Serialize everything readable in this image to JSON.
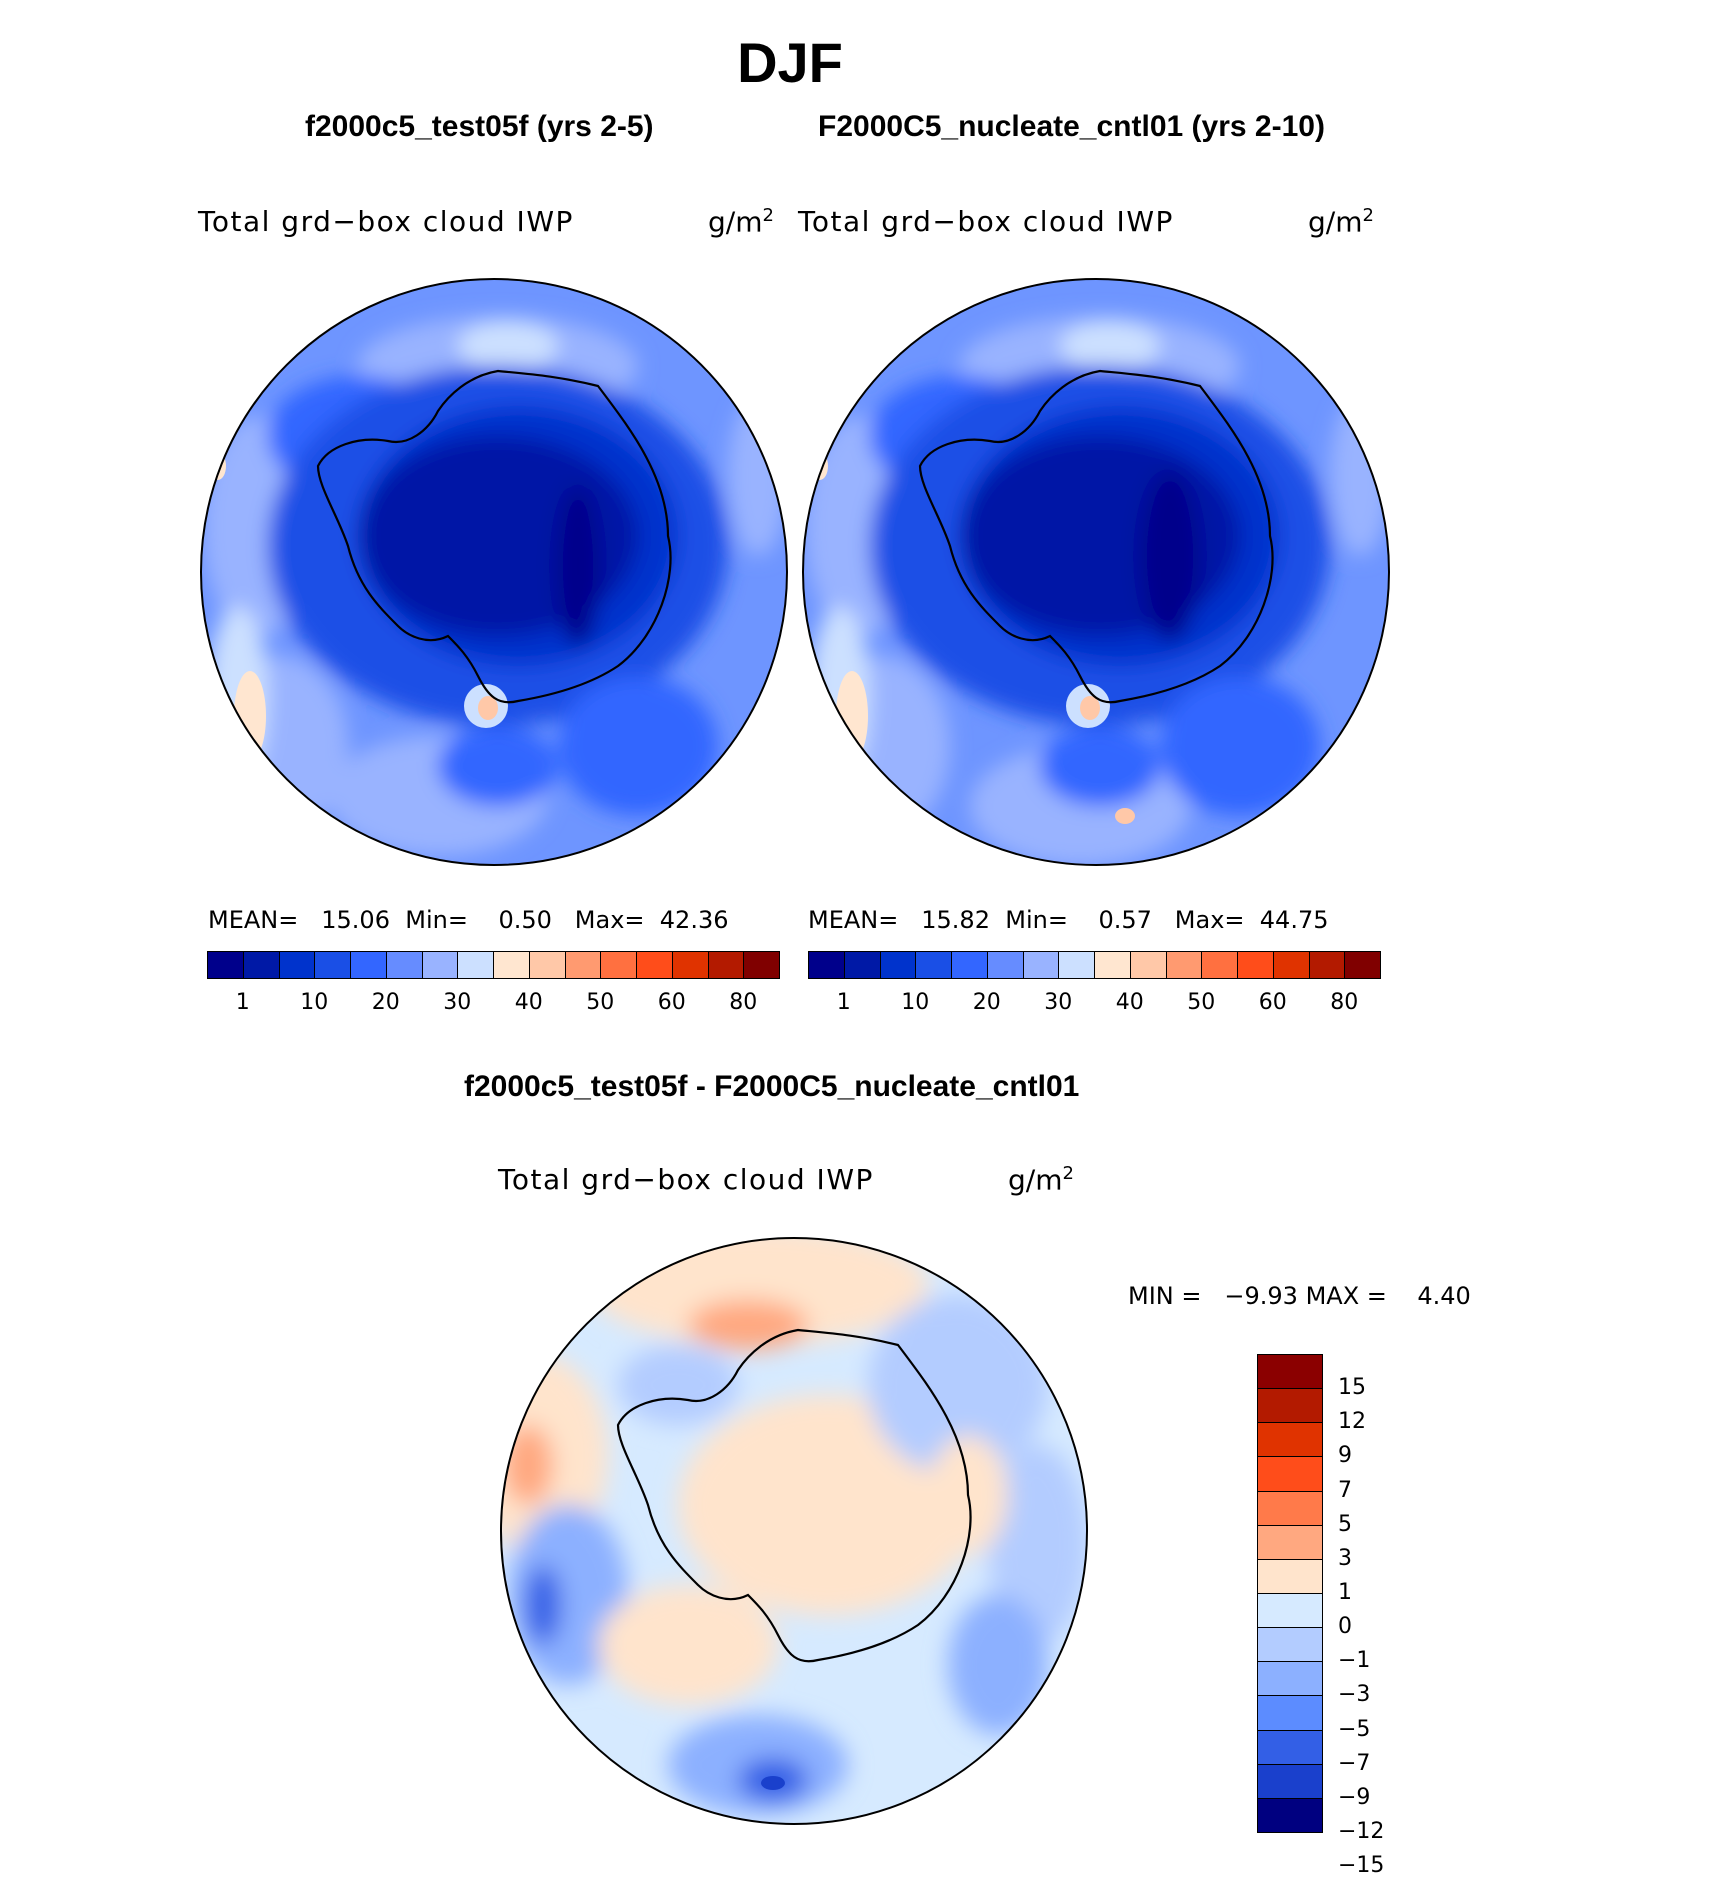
{
  "figure": {
    "season": "DJF",
    "variable_label": "Total grd−box cloud IWP",
    "units_base": "g/m",
    "units_exp": "2"
  },
  "panels": {
    "test": {
      "title": "f2000c5_test05f (yrs 2-5)",
      "stats": {
        "mean_label": "MEAN=",
        "mean": "15.06",
        "min_label": "Min=",
        "min": "0.50",
        "max_label": "Max=",
        "max": "42.36"
      }
    },
    "control": {
      "title": "F2000C5_nucleate_cntl01 (yrs 2-10)",
      "stats": {
        "mean_label": "MEAN=",
        "mean": "15.82",
        "min_label": "Min=",
        "min": "0.57",
        "max_label": "Max=",
        "max": "44.75"
      }
    },
    "difference": {
      "title": "f2000c5_test05f - F2000C5_nucleate_cntl01",
      "stats": {
        "min_label": "MIN =",
        "min": "−9.93",
        "max_label": "MAX =",
        "max": "4.40"
      }
    }
  },
  "colorbars": {
    "field": {
      "colors": [
        "#00008b",
        "#0019a6",
        "#0033cc",
        "#1a4fe6",
        "#3366ff",
        "#668cff",
        "#99b3ff",
        "#cce0ff",
        "#ffe6d0",
        "#ffc8a8",
        "#ff9a70",
        "#ff7040",
        "#ff4d1a",
        "#e03300",
        "#b31a00",
        "#800000"
      ],
      "tick_labels": [
        "1",
        "10",
        "20",
        "30",
        "40",
        "50",
        "60",
        "80"
      ]
    },
    "difference": {
      "colors_top_to_bottom": [
        "#8b0000",
        "#b31a00",
        "#e03300",
        "#ff4d1a",
        "#ff7a4a",
        "#ffa880",
        "#ffe4cc",
        "#d6eaff",
        "#b3ccff",
        "#8cb0ff",
        "#5c8cff",
        "#335fe6",
        "#1a40cc",
        "#000080"
      ],
      "tick_labels_top_to_bottom": [
        "15",
        "12",
        "9",
        "7",
        "5",
        "3",
        "1",
        "0",
        "−1",
        "−3",
        "−5",
        "−7",
        "−9",
        "−12",
        "−15"
      ]
    }
  }
}
